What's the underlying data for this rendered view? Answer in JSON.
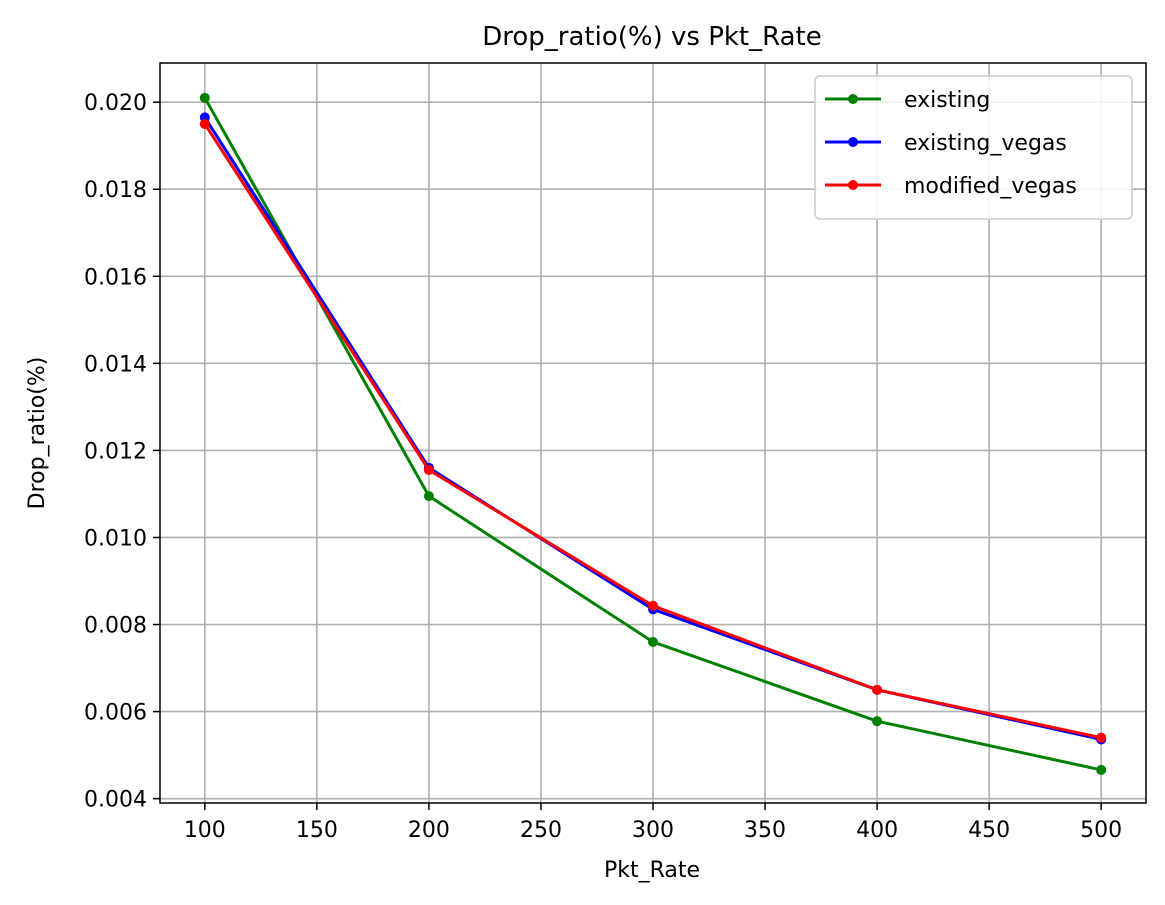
{
  "chart_data": {
    "type": "line",
    "title": "Drop_ratio(%) vs Pkt_Rate",
    "xlabel": "Pkt_Rate",
    "ylabel": "Drop_ratio(%)",
    "x": [
      100,
      200,
      300,
      400,
      500
    ],
    "xlim": [
      80,
      520
    ],
    "ylim": [
      0.0039,
      0.0209
    ],
    "xticks": [
      100,
      150,
      200,
      250,
      300,
      350,
      400,
      450,
      500
    ],
    "xtick_labels": [
      "100",
      "150",
      "200",
      "250",
      "300",
      "350",
      "400",
      "450",
      "500"
    ],
    "yticks": [
      0.004,
      0.006,
      0.008,
      0.01,
      0.012,
      0.014,
      0.016,
      0.018,
      0.02
    ],
    "ytick_labels": [
      "0.004",
      "0.006",
      "0.008",
      "0.010",
      "0.012",
      "0.014",
      "0.016",
      "0.018",
      "0.020"
    ],
    "grid": true,
    "legend_position": "top-right",
    "series": [
      {
        "name": "existing",
        "color": "#008000",
        "values": [
          0.0201,
          0.01095,
          0.0076,
          0.00578,
          0.00466
        ]
      },
      {
        "name": "existing_vegas",
        "color": "#0000ff",
        "values": [
          0.01965,
          0.0116,
          0.00835,
          0.0065,
          0.00536
        ]
      },
      {
        "name": "modified_vegas",
        "color": "#ff0000",
        "values": [
          0.0195,
          0.01155,
          0.00843,
          0.0065,
          0.0054
        ]
      }
    ]
  }
}
